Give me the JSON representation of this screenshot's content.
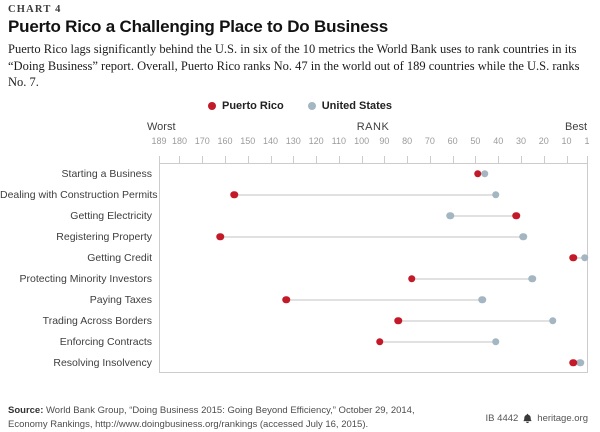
{
  "header": {
    "eyebrow": "CHART 4",
    "title": "Puerto Rico a Challenging Place to Do Business",
    "subtitle": "Puerto Rico lags significantly behind the U.S. in six of the 10 metrics the World Bank uses to rank countries in its “Doing Business” report. Overall, Puerto Rico ranks No. 47 in the world out of 189 countries while the U.S. ranks No. 7."
  },
  "chart_data": {
    "type": "scatter",
    "subtype": "dot-plot-horizontal",
    "axis": {
      "label_left": "Worst",
      "label_center": "RANK",
      "label_right": "Best",
      "min": 189,
      "max": 1,
      "direction": "reversed",
      "ticks": [
        189,
        180,
        170,
        160,
        150,
        140,
        130,
        120,
        110,
        100,
        90,
        80,
        70,
        60,
        50,
        40,
        30,
        20,
        10,
        1
      ]
    },
    "categories": [
      "Starting a Business",
      "Dealing with Construction Permits",
      "Getting Electricity",
      "Registering Property",
      "Getting Credit",
      "Protecting Minority Investors",
      "Paying Taxes",
      "Trading Across Borders",
      "Enforcing Contracts",
      "Resolving Insolvency"
    ],
    "series": [
      {
        "name": "Puerto Rico",
        "color": "#c41928",
        "values": [
          49,
          156,
          32,
          162,
          7,
          78,
          133,
          84,
          92,
          7
        ]
      },
      {
        "name": "United States",
        "color": "#a3b6c1",
        "values": [
          46,
          41,
          61,
          29,
          2,
          25,
          47,
          16,
          41,
          4
        ]
      }
    ],
    "legend_position": "top-center",
    "grid": false
  },
  "footer": {
    "source_label": "Source:",
    "source_rest": " World Bank Group, “Doing Business 2015: Going Beyond Efficiency,” October 29, 2014,",
    "source_line2": "Economy Rankings, http://www.doingbusiness.org/rankings (accessed July 16, 2015).",
    "brief_id": "IB 4442",
    "site": "heritage.org",
    "icon": "liberty-bell-icon"
  }
}
